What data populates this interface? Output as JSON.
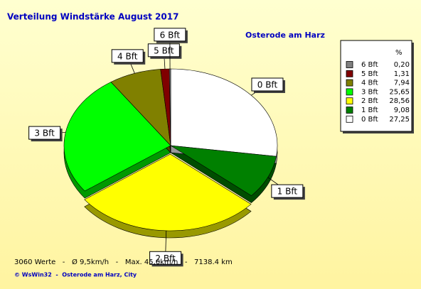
{
  "chart_data": {
    "type": "pie",
    "title": "Verteilung Windstärke  August 2017",
    "subtitle": "Osterode am Harz",
    "legend_header": "%",
    "categories": [
      "6 Bft",
      "5 Bft",
      "4 Bft",
      "3 Bft",
      "2 Bft",
      "1 Bft",
      "0 Bft"
    ],
    "values": [
      0.2,
      1.31,
      7.94,
      25.65,
      28.56,
      9.08,
      27.25
    ],
    "value_labels": [
      "0,20",
      "1,31",
      "7,94",
      "25,65",
      "28,56",
      "9,08",
      "27,25"
    ],
    "colors": [
      "#808080",
      "#800000",
      "#808000",
      "#00ff00",
      "#ffff00",
      "#008000",
      "#ffffff"
    ],
    "exploded": "2 Bft",
    "footer": "3060 Werte   -   Ø 9,5km/h   -   Max. 45,6km/h   -   7138.4 km",
    "copyright": "© WsWin32  -  Osterode am Harz, City"
  }
}
